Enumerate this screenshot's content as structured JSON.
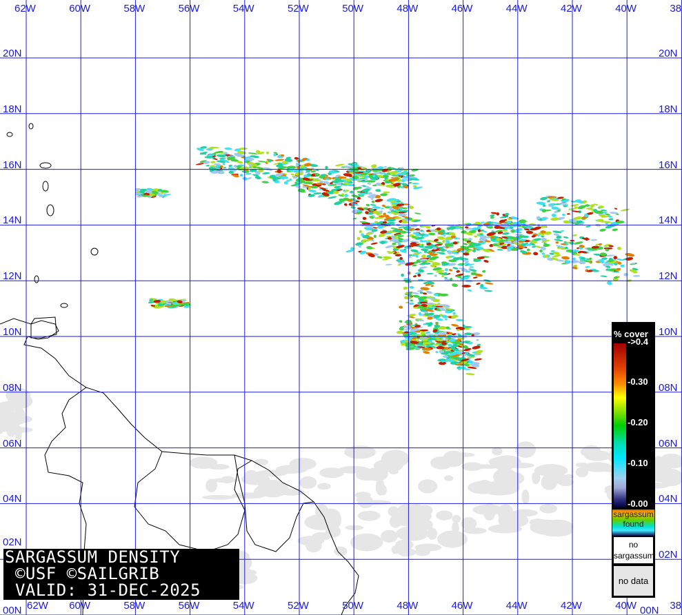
{
  "map": {
    "type": "sargassum density map",
    "lon_labels": [
      "62W",
      "60W",
      "58W",
      "56W",
      "54W",
      "52W",
      "50W",
      "48W",
      "46W",
      "44W",
      "42W",
      "40W",
      "38"
    ],
    "lat_labels": [
      "20N",
      "18N",
      "16N",
      "14N",
      "12N",
      "10N",
      "08N",
      "06N",
      "04N",
      "02N",
      "00N"
    ],
    "grid_color": "#1a1adc",
    "land_outline_color": "#000000",
    "no_data_color": "#e6e6e6"
  },
  "caption": {
    "line1": "SARGASSUM DENSITY",
    "line2": " ©USF ©SAILGRIB",
    "line3": " VALID: 31-DEC-2025"
  },
  "legend": {
    "title": "% cover",
    "ticks": [
      "->0.4",
      "-0.30",
      "-0.20",
      "-0.10",
      "-0.00"
    ],
    "found_label": "sargassum found",
    "no_sargassum_label": "no sargassum",
    "no_data_label": "no data",
    "colors": [
      "#a00000",
      "#ff9000",
      "#ffff00",
      "#00d000",
      "#00e8ff",
      "#a0d0f0",
      "#000040"
    ]
  }
}
